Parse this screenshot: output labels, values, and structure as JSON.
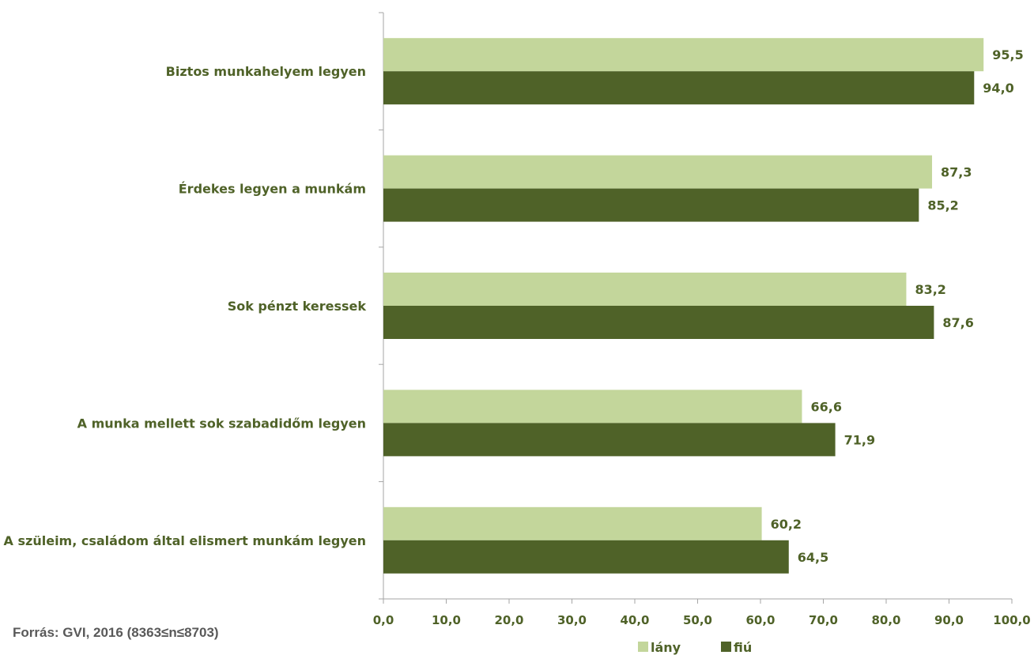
{
  "chart_data": {
    "type": "bar",
    "orientation": "horizontal",
    "categories": [
      "Biztos munkahelyem legyen",
      "Érdekes legyen a munkám",
      "Sok pénzt keressek",
      "A munka mellett sok szabadidőm legyen",
      "A szüleim, családom által elismert munkám legyen"
    ],
    "series": [
      {
        "name": "lány",
        "color": "#c3d69b",
        "values": [
          95.5,
          87.3,
          83.2,
          66.6,
          60.2
        ],
        "labels": [
          "95,5",
          "87,3",
          "83,2",
          "66,6",
          "60,2"
        ]
      },
      {
        "name": "fiú",
        "color": "#4f6228",
        "values": [
          94.0,
          85.2,
          87.6,
          71.9,
          64.5
        ],
        "labels": [
          "94,0",
          "85,2",
          "87,6",
          "71,9",
          "64,5"
        ]
      }
    ],
    "xlim": [
      0,
      100
    ],
    "xticks": [
      "0,0",
      "10,0",
      "20,0",
      "30,0",
      "40,0",
      "50,0",
      "60,0",
      "70,0",
      "80,0",
      "90,0",
      "100,0"
    ],
    "grid": false,
    "legend_position": "bottom"
  },
  "source_note": "Forrás: GVI, 2016 (8363≤n≤8703)"
}
